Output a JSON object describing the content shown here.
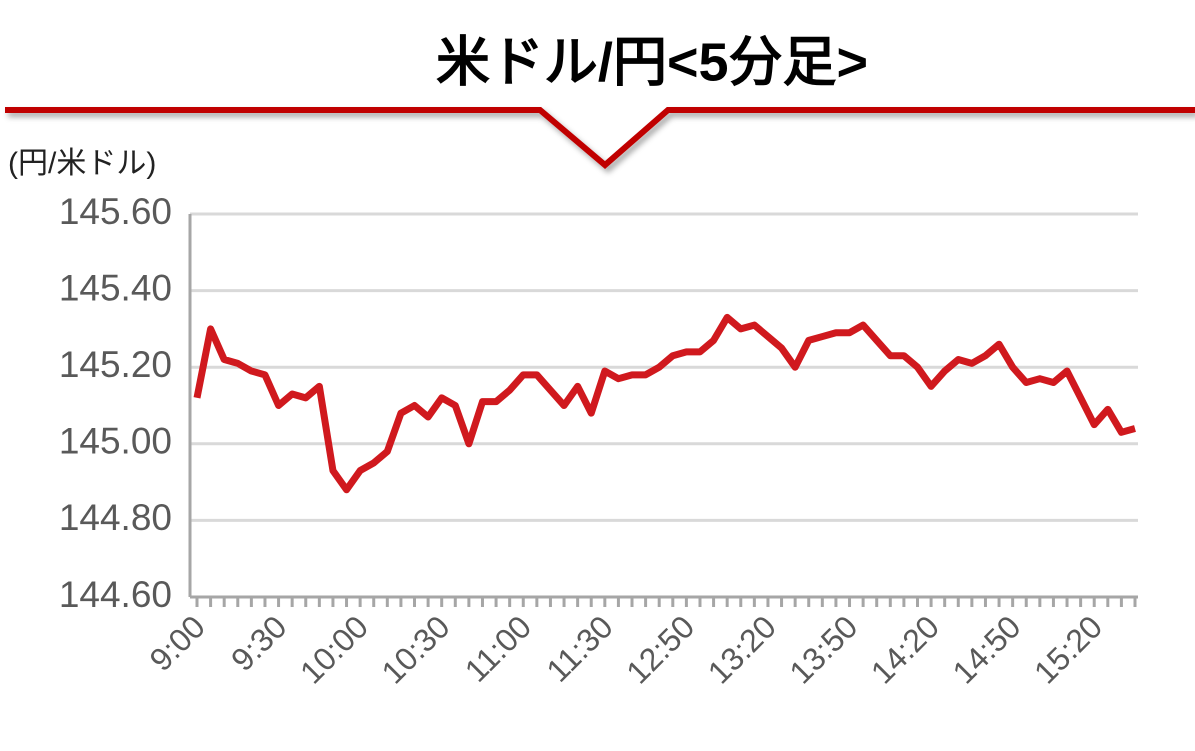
{
  "chart_data": {
    "type": "line",
    "title": "米ドル/円<5分足>",
    "y_label": "(円/米ドル)",
    "categories": [
      "9:00",
      null,
      null,
      null,
      null,
      null,
      "9:30",
      null,
      null,
      null,
      null,
      null,
      "10:00",
      null,
      null,
      null,
      null,
      null,
      "10:30",
      null,
      null,
      null,
      null,
      null,
      "11:00",
      null,
      null,
      null,
      null,
      null,
      "11:30",
      null,
      null,
      null,
      null,
      null,
      "12:50",
      null,
      null,
      null,
      null,
      null,
      "13:20",
      null,
      null,
      null,
      null,
      null,
      "13:50",
      null,
      null,
      null,
      null,
      null,
      "14:20",
      null,
      null,
      null,
      null,
      null,
      "14:50",
      null,
      null,
      null,
      null,
      null,
      "15:20",
      null,
      null,
      null
    ],
    "series": [
      {
        "name": "米ドル/円",
        "color": "#d0191e",
        "values": [
          145.12,
          145.3,
          145.22,
          145.21,
          145.19,
          145.18,
          145.1,
          145.13,
          145.12,
          145.15,
          144.93,
          144.88,
          144.93,
          144.95,
          144.98,
          145.08,
          145.1,
          145.07,
          145.12,
          145.1,
          145.0,
          145.11,
          145.11,
          145.14,
          145.18,
          145.18,
          145.14,
          145.1,
          145.15,
          145.08,
          145.19,
          145.17,
          145.18,
          145.18,
          145.2,
          145.23,
          145.24,
          145.24,
          145.27,
          145.33,
          145.3,
          145.31,
          145.28,
          145.25,
          145.2,
          145.27,
          145.28,
          145.29,
          145.29,
          145.31,
          145.27,
          145.23,
          145.23,
          145.2,
          145.15,
          145.19,
          145.22,
          145.21,
          145.23,
          145.26,
          145.2,
          145.16,
          145.17,
          145.16,
          145.19,
          145.12,
          145.05,
          145.09,
          145.03,
          145.04
        ]
      }
    ],
    "ylim": [
      144.6,
      145.6
    ],
    "yticks": [
      {
        "value": 144.6,
        "label": "144.60"
      },
      {
        "value": 144.8,
        "label": "144.80"
      },
      {
        "value": 145,
        "label": "145.00"
      },
      {
        "value": 145.2,
        "label": "145.20"
      },
      {
        "value": 145.4,
        "label": "145.40"
      },
      {
        "value": 145.6,
        "label": "145.60"
      }
    ],
    "grid": true
  }
}
